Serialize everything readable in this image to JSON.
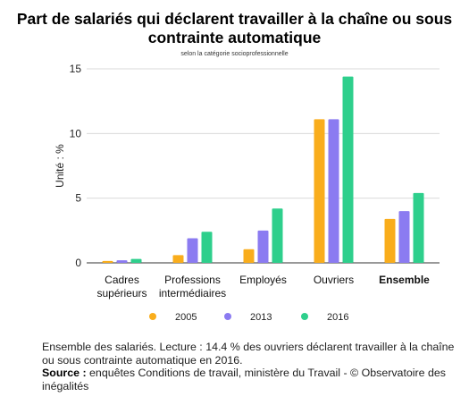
{
  "chart_data": {
    "type": "bar",
    "title": "Part de salariés qui déclarent travailler à la chaîne ou sous contrainte automatique",
    "subtitle": "selon la catégorie socioprofessionnelle",
    "ylabel": "Unité : %",
    "ylim": [
      0,
      15
    ],
    "yticks": [
      0,
      5,
      10,
      15
    ],
    "categories": [
      [
        "Cadres",
        "supérieurs"
      ],
      [
        "Professions",
        "intermédiaires"
      ],
      [
        "Employés"
      ],
      [
        "Ouvriers"
      ],
      [
        "Ensemble"
      ]
    ],
    "bold_category": "Ensemble",
    "series": [
      {
        "name": "2005",
        "color": "#f9ad1c",
        "values": [
          0.15,
          0.6,
          1.05,
          11.1,
          3.4
        ]
      },
      {
        "name": "2013",
        "color": "#8b7bf1",
        "values": [
          0.2,
          1.9,
          2.5,
          11.1,
          4.0
        ]
      },
      {
        "name": "2016",
        "color": "#2ecf8c",
        "values": [
          0.3,
          2.4,
          4.2,
          14.4,
          5.4
        ]
      }
    ],
    "grid": true,
    "legend": "bottom"
  },
  "footer": {
    "lecture": "Ensemble des salariés. Lecture : 14.4 % des ouvriers déclarent travailler à la chaîne ou sous contrainte automatique en 2016.",
    "source_label": "Source :",
    "source_text": "enquêtes Conditions de travail, ministère du Travail - © Observatoire des inégalités"
  }
}
